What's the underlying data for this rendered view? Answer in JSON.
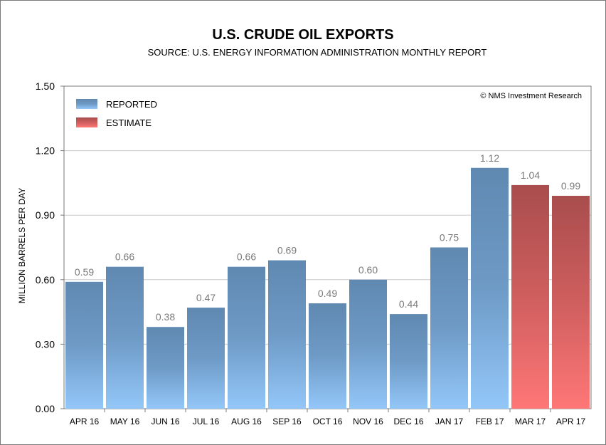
{
  "chart_data": {
    "type": "bar",
    "title": "U.S. CRUDE OIL EXPORTS",
    "subtitle": "SOURCE: U.S. ENERGY INFORMATION ADMINISTRATION MONTHLY REPORT",
    "xlabel": "",
    "ylabel": "MILLION BARRELS PER DAY",
    "ylim": [
      0,
      1.5
    ],
    "yticks": [
      "0.00",
      "0.30",
      "0.60",
      "0.90",
      "1.20",
      "1.50"
    ],
    "grid": true,
    "legend_position": "top-left",
    "credit": "© NMS Investment Research",
    "categories": [
      "APR 16",
      "MAY 16",
      "JUN 16",
      "JUL 16",
      "AUG 16",
      "SEP 16",
      "OCT 16",
      "NOV 16",
      "DEC 16",
      "JAN 17",
      "FEB 17",
      "MAR 17",
      "APR 17"
    ],
    "values": [
      0.59,
      0.66,
      0.38,
      0.47,
      0.66,
      0.69,
      0.49,
      0.6,
      0.44,
      0.75,
      1.12,
      1.04,
      0.99
    ],
    "value_labels": [
      "0.59",
      "0.66",
      "0.38",
      "0.47",
      "0.66",
      "0.69",
      "0.49",
      "0.60",
      "0.44",
      "0.75",
      "1.12",
      "1.04",
      "0.99"
    ],
    "series_type": [
      "REPORTED",
      "REPORTED",
      "REPORTED",
      "REPORTED",
      "REPORTED",
      "REPORTED",
      "REPORTED",
      "REPORTED",
      "REPORTED",
      "REPORTED",
      "REPORTED",
      "ESTIMATE",
      "ESTIMATE"
    ],
    "legend": [
      {
        "name": "REPORTED",
        "color_top": "#6089b1",
        "color_bottom": "#93c7f9"
      },
      {
        "name": "ESTIMATE",
        "color_top": "#a94d4d",
        "color_bottom": "#ff7777"
      }
    ]
  }
}
